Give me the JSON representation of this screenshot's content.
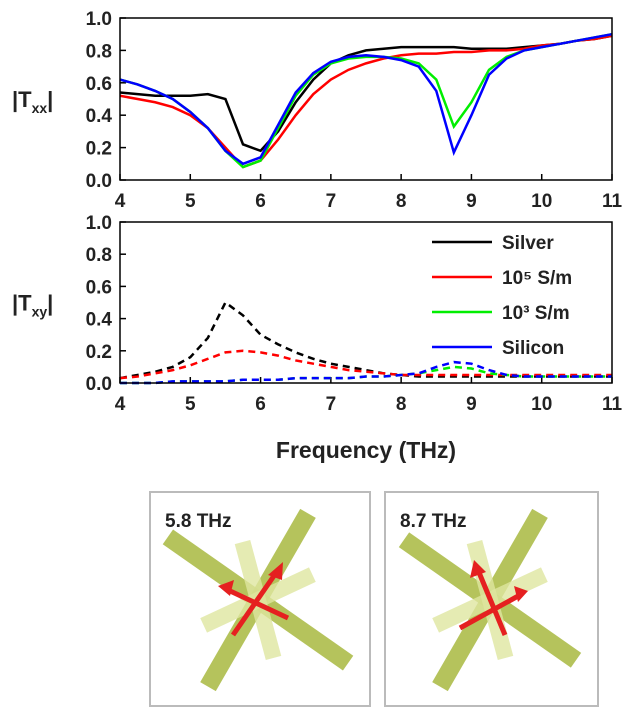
{
  "chart_data": [
    {
      "type": "line",
      "ylabel": [
        "|T",
        "xx",
        "|"
      ],
      "x": [
        4,
        4.25,
        4.5,
        4.75,
        5,
        5.25,
        5.5,
        5.75,
        6,
        6.25,
        6.5,
        6.75,
        7,
        7.25,
        7.5,
        7.75,
        8,
        8.25,
        8.5,
        8.75,
        9,
        9.25,
        9.5,
        9.75,
        10,
        10.25,
        10.5,
        10.75,
        11
      ],
      "series": [
        {
          "color": "#000000",
          "values": [
            0.54,
            0.53,
            0.52,
            0.52,
            0.52,
            0.53,
            0.5,
            0.22,
            0.18,
            0.3,
            0.48,
            0.62,
            0.72,
            0.77,
            0.8,
            0.81,
            0.82,
            0.82,
            0.82,
            0.82,
            0.81,
            0.81,
            0.81,
            0.82,
            0.83,
            0.84,
            0.86,
            0.87,
            0.89
          ]
        },
        {
          "color": "#ff0000",
          "values": [
            0.52,
            0.5,
            0.48,
            0.45,
            0.4,
            0.32,
            0.2,
            0.08,
            0.12,
            0.25,
            0.4,
            0.53,
            0.62,
            0.68,
            0.72,
            0.75,
            0.77,
            0.78,
            0.78,
            0.79,
            0.79,
            0.8,
            0.8,
            0.81,
            0.83,
            0.84,
            0.86,
            0.87,
            0.89
          ]
        },
        {
          "color": "#00ee00",
          "values": [
            0.62,
            0.59,
            0.55,
            0.5,
            0.42,
            0.32,
            0.18,
            0.08,
            0.12,
            0.32,
            0.52,
            0.65,
            0.72,
            0.75,
            0.76,
            0.76,
            0.75,
            0.72,
            0.62,
            0.33,
            0.48,
            0.68,
            0.76,
            0.8,
            0.82,
            0.84,
            0.86,
            0.88,
            0.9
          ]
        },
        {
          "color": "#0000ff",
          "values": [
            0.62,
            0.59,
            0.55,
            0.5,
            0.42,
            0.32,
            0.18,
            0.1,
            0.14,
            0.34,
            0.54,
            0.66,
            0.73,
            0.76,
            0.77,
            0.76,
            0.74,
            0.7,
            0.55,
            0.17,
            0.4,
            0.65,
            0.75,
            0.8,
            0.82,
            0.84,
            0.86,
            0.88,
            0.9
          ]
        }
      ],
      "xlim": [
        4,
        11
      ],
      "xticks": [
        4,
        5,
        6,
        7,
        8,
        9,
        10,
        11
      ],
      "ylim": [
        0,
        1
      ],
      "yticks": [
        {
          "value": 0,
          "label": "0.0"
        },
        {
          "value": 0.2,
          "label": "0.2"
        },
        {
          "value": 0.4,
          "label": "0.4"
        },
        {
          "value": 0.6,
          "label": "0.6"
        },
        {
          "value": 0.8,
          "label": "0.8"
        },
        {
          "value": 1,
          "label": "1.0"
        }
      ],
      "dashed": false
    },
    {
      "type": "line",
      "ylabel": [
        "|T",
        "xy",
        "|"
      ],
      "xlabel": "Frequency (THz)",
      "x": [
        4,
        4.25,
        4.5,
        4.75,
        5,
        5.25,
        5.5,
        5.75,
        6,
        6.25,
        6.5,
        6.75,
        7,
        7.25,
        7.5,
        7.75,
        8,
        8.25,
        8.5,
        8.75,
        9,
        9.25,
        9.5,
        9.75,
        10,
        10.25,
        10.5,
        10.75,
        11
      ],
      "series": [
        {
          "name": "Silver",
          "color": "#000000",
          "values": [
            0.03,
            0.05,
            0.07,
            0.1,
            0.16,
            0.28,
            0.5,
            0.42,
            0.3,
            0.24,
            0.19,
            0.15,
            0.12,
            0.1,
            0.08,
            0.06,
            0.05,
            0.04,
            0.04,
            0.04,
            0.04,
            0.04,
            0.04,
            0.04,
            0.04,
            0.04,
            0.04,
            0.04,
            0.04
          ]
        },
        {
          "name": "10⁵ S/m",
          "color": "#ff0000",
          "values": [
            0.03,
            0.04,
            0.06,
            0.08,
            0.11,
            0.15,
            0.19,
            0.2,
            0.19,
            0.17,
            0.14,
            0.12,
            0.1,
            0.08,
            0.07,
            0.06,
            0.05,
            0.05,
            0.05,
            0.05,
            0.05,
            0.05,
            0.05,
            0.05,
            0.05,
            0.05,
            0.05,
            0.05,
            0.05
          ]
        },
        {
          "name": "10³ S/m",
          "color": "#00ee00",
          "values": [
            0,
            0,
            0,
            0.01,
            0.01,
            0.01,
            0.01,
            0.02,
            0.02,
            0.02,
            0.03,
            0.03,
            0.03,
            0.03,
            0.04,
            0.04,
            0.05,
            0.06,
            0.08,
            0.1,
            0.09,
            0.06,
            0.05,
            0.04,
            0.04,
            0.04,
            0.04,
            0.04,
            0.04
          ]
        },
        {
          "name": "Silicon",
          "color": "#0000ff",
          "values": [
            0,
            0,
            0,
            0.01,
            0.01,
            0.01,
            0.01,
            0.02,
            0.02,
            0.02,
            0.03,
            0.03,
            0.03,
            0.03,
            0.04,
            0.04,
            0.05,
            0.06,
            0.1,
            0.13,
            0.12,
            0.08,
            0.05,
            0.04,
            0.04,
            0.04,
            0.04,
            0.04,
            0.04
          ]
        }
      ],
      "xlim": [
        4,
        11
      ],
      "xticks": [
        4,
        5,
        6,
        7,
        8,
        9,
        10,
        11
      ],
      "ylim": [
        0,
        1
      ],
      "yticks": [
        {
          "value": 0,
          "label": "0.0"
        },
        {
          "value": 0.2,
          "label": "0.2"
        },
        {
          "value": 0.4,
          "label": "0.4"
        },
        {
          "value": 0.6,
          "label": "0.6"
        },
        {
          "value": 0.8,
          "label": "0.8"
        },
        {
          "value": 1,
          "label": "1.0"
        }
      ],
      "dashed": true,
      "legend": "upper right"
    }
  ],
  "insets": [
    {
      "label": "5.8 THz"
    },
    {
      "label": "8.7 THz"
    }
  ]
}
